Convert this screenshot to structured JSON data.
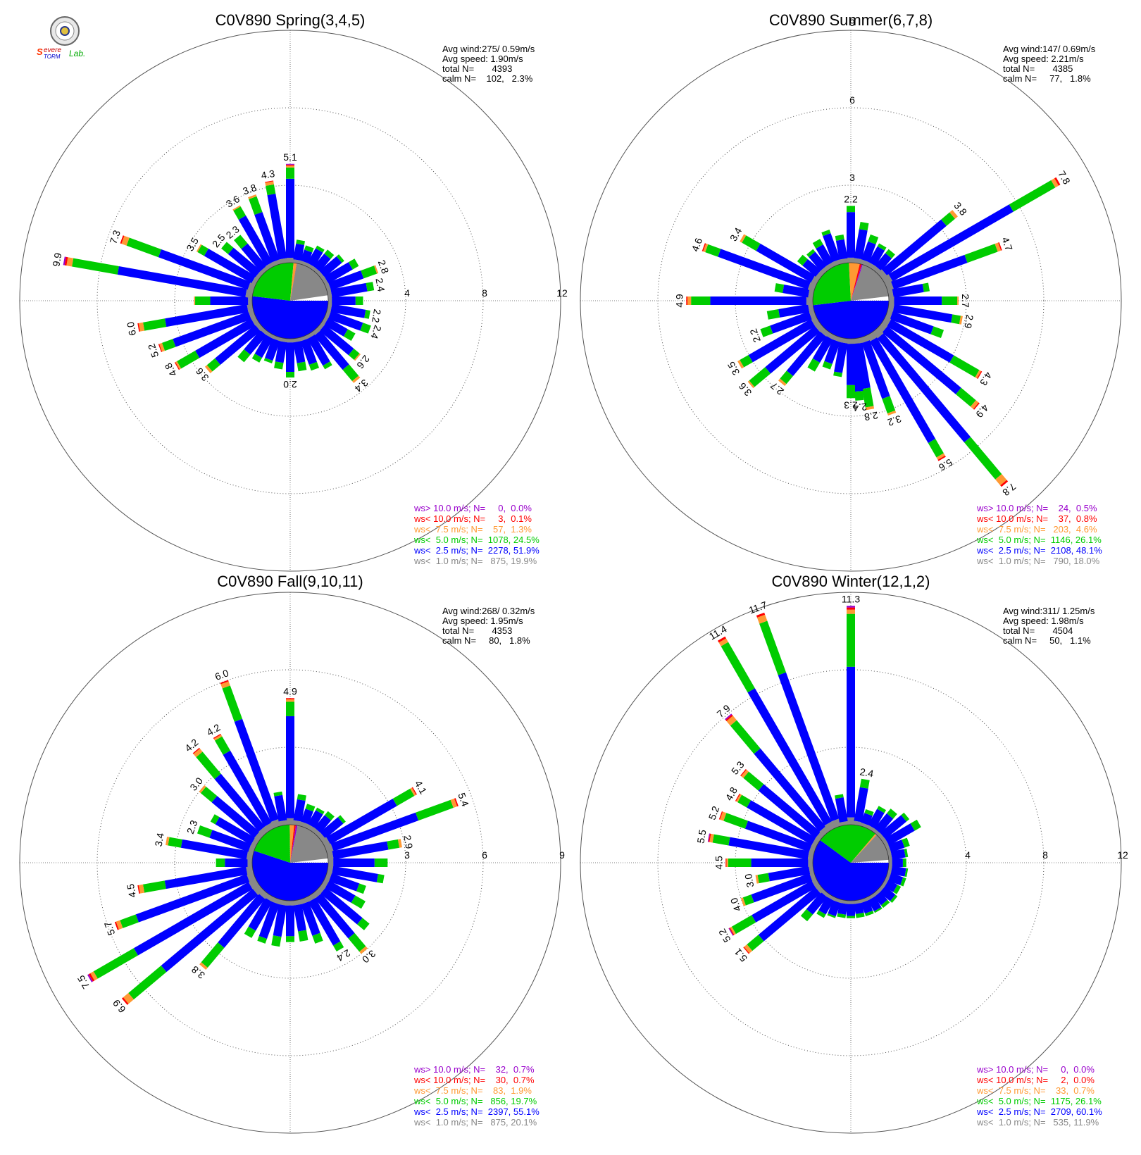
{
  "logo": {
    "text": "Severe Storm Lab."
  },
  "chart_data": [
    {
      "type": "rose",
      "title": "C0V890 Spring(3,4,5)",
      "ring_max": 12,
      "ring_labels": [
        "4",
        "8",
        "12"
      ],
      "ring_label_side": "east",
      "stats": [
        "Avg wind:275/ 0.59m/s",
        "Avg speed: 1.90m/s",
        "total N=       4393",
        "calm N=    102,   2.3%"
      ],
      "legend": [
        "ws> 10.0 m/s; N=     0,  0.0%",
        "ws< 10.0 m/s; N=     3,  0.1%",
        "ws<  7.5 m/s; N=    57,  1.3%",
        "ws<  5.0 m/s; N=  1078, 24.5%",
        "ws<  2.5 m/s; N=  2278, 51.9%",
        "ws<  1.0 m/s; N=   875, 19.9%"
      ],
      "pie": [
        51.9,
        24.5,
        1.3,
        0.1,
        0.0,
        19.9
      ],
      "spokes": [
        {
          "dir": 0,
          "total": 5.1,
          "label": "5.1"
        },
        {
          "dir": 10,
          "total": 1.2
        },
        {
          "dir": 20,
          "total": 1.0
        },
        {
          "dir": 30,
          "total": 1.2
        },
        {
          "dir": 40,
          "total": 1.3
        },
        {
          "dir": 50,
          "total": 1.5
        },
        {
          "dir": 60,
          "total": 2.0
        },
        {
          "dir": 70,
          "total": 2.8,
          "label": "2.8"
        },
        {
          "dir": 80,
          "total": 2.4,
          "label": "2.4"
        },
        {
          "dir": 90,
          "total": 1.8
        },
        {
          "dir": 100,
          "total": 2.2,
          "label": "2.2"
        },
        {
          "dir": 110,
          "total": 2.4,
          "label": "2.4"
        },
        {
          "dir": 120,
          "total": 1.8
        },
        {
          "dir": 130,
          "total": 2.6,
          "label": "2.6"
        },
        {
          "dir": 140,
          "total": 3.4,
          "label": "3.4"
        },
        {
          "dir": 150,
          "total": 2.0
        },
        {
          "dir": 160,
          "total": 1.8
        },
        {
          "dir": 170,
          "total": 1.7
        },
        {
          "dir": 180,
          "total": 2.0,
          "label": "2.0"
        },
        {
          "dir": 190,
          "total": 1.6
        },
        {
          "dir": 200,
          "total": 1.4
        },
        {
          "dir": 210,
          "total": 1.6
        },
        {
          "dir": 220,
          "total": 2.0
        },
        {
          "dir": 230,
          "total": 3.6,
          "label": "3.6"
        },
        {
          "dir": 240,
          "total": 4.8,
          "label": "4.8"
        },
        {
          "dir": 250,
          "total": 5.2,
          "label": "5.2"
        },
        {
          "dir": 260,
          "total": 6.0,
          "label": "6.0"
        },
        {
          "dir": 270,
          "total": 3.0
        },
        {
          "dir": 280,
          "total": 9.9,
          "label": "9.9"
        },
        {
          "dir": 290,
          "total": 7.3,
          "label": "7.3"
        },
        {
          "dir": 300,
          "total": 3.5,
          "label": "3.5"
        },
        {
          "dir": 310,
          "total": 2.5,
          "label": "2.5"
        },
        {
          "dir": 320,
          "total": 2.3,
          "label": "2.3"
        },
        {
          "dir": 330,
          "total": 3.6,
          "label": "3.6"
        },
        {
          "dir": 340,
          "total": 3.8,
          "label": "3.8"
        },
        {
          "dir": 350,
          "total": 4.3,
          "label": "4.3"
        }
      ]
    },
    {
      "type": "rose",
      "title": "C0V890 Summer(6,7,8)",
      "ring_max": 9,
      "ring_labels": [
        "3",
        "6",
        "9"
      ],
      "ring_label_side": "north",
      "stats": [
        "Avg wind:147/ 0.69m/s",
        "Avg speed: 2.21m/s",
        "total N=       4385",
        "calm N=     77,   1.8%"
      ],
      "legend": [
        "ws> 10.0 m/s; N=    24,  0.5%",
        "ws< 10.0 m/s; N=    37,  0.8%",
        "ws<  7.5 m/s; N=   203,  4.6%",
        "ws<  5.0 m/s; N=  1146, 26.1%",
        "ws<  2.5 m/s; N=  2108, 48.1%",
        "ws<  1.0 m/s; N=   790, 18.0%"
      ],
      "pie": [
        48.1,
        26.1,
        4.6,
        0.8,
        0.5,
        18.0
      ],
      "spokes": [
        {
          "dir": 0,
          "total": 2.2,
          "label": "2.2"
        },
        {
          "dir": 10,
          "total": 1.6
        },
        {
          "dir": 20,
          "total": 1.2
        },
        {
          "dir": 30,
          "total": 1.0
        },
        {
          "dir": 40,
          "total": 1.0
        },
        {
          "dir": 50,
          "total": 3.8,
          "label": "3.8"
        },
        {
          "dir": 60,
          "total": 7.8,
          "label": "7.8"
        },
        {
          "dir": 70,
          "total": 4.7,
          "label": "4.7"
        },
        {
          "dir": 80,
          "total": 1.6
        },
        {
          "dir": 90,
          "total": 2.7,
          "label": "2.7"
        },
        {
          "dir": 100,
          "total": 2.9,
          "label": "2.9"
        },
        {
          "dir": 110,
          "total": 2.3
        },
        {
          "dir": 120,
          "total": 4.3,
          "label": "4.3"
        },
        {
          "dir": 130,
          "total": 4.9,
          "label": "4.9"
        },
        {
          "dir": 140,
          "total": 7.8,
          "label": "7.8"
        },
        {
          "dir": 150,
          "total": 5.6,
          "label": "5.6"
        },
        {
          "dir": 160,
          "total": 3.2,
          "label": "3.2"
        },
        {
          "dir": 170,
          "total": 2.8,
          "label": "2.8"
        },
        {
          "dir": 175,
          "total": 2.4,
          "label": "2.4"
        },
        {
          "dir": 180,
          "total": 2.3,
          "label": "2.3"
        },
        {
          "dir": 190,
          "total": 1.5
        },
        {
          "dir": 200,
          "total": 1.3
        },
        {
          "dir": 210,
          "total": 1.6
        },
        {
          "dir": 220,
          "total": 2.7,
          "label": "2.7"
        },
        {
          "dir": 230,
          "total": 3.6,
          "label": "3.6"
        },
        {
          "dir": 240,
          "total": 3.5,
          "label": "3.5"
        },
        {
          "dir": 250,
          "total": 2.2,
          "label": "2.2"
        },
        {
          "dir": 260,
          "total": 1.8
        },
        {
          "dir": 270,
          "total": 4.9,
          "label": "4.9"
        },
        {
          "dir": 280,
          "total": 1.5
        },
        {
          "dir": 290,
          "total": 4.6,
          "label": "4.6"
        },
        {
          "dir": 300,
          "total": 3.4,
          "label": "3.4"
        },
        {
          "dir": 310,
          "total": 1.1
        },
        {
          "dir": 320,
          "total": 1.0
        },
        {
          "dir": 330,
          "total": 1.2
        },
        {
          "dir": 340,
          "total": 1.4
        },
        {
          "dir": 350,
          "total": 1.1
        }
      ]
    },
    {
      "type": "rose",
      "title": "C0V890 Fall(9,10,11)",
      "ring_max": 9,
      "ring_labels": [
        "3",
        "6",
        "9"
      ],
      "ring_label_side": "east",
      "stats": [
        "Avg wind:268/ 0.32m/s",
        "Avg speed: 1.95m/s",
        "total N=       4353",
        "calm N=     80,   1.8%"
      ],
      "legend": [
        "ws> 10.0 m/s; N=    32,  0.7%",
        "ws< 10.0 m/s; N=    30,  0.7%",
        "ws<  7.5 m/s; N=    83,  1.9%",
        "ws<  5.0 m/s; N=   856, 19.7%",
        "ws<  2.5 m/s; N=  2397, 55.1%",
        "ws<  1.0 m/s; N=   875, 20.1%"
      ],
      "pie": [
        55.1,
        19.7,
        1.9,
        0.7,
        0.7,
        20.1
      ],
      "spokes": [
        {
          "dir": 0,
          "total": 4.9,
          "label": "4.9"
        },
        {
          "dir": 10,
          "total": 1.2
        },
        {
          "dir": 20,
          "total": 0.9
        },
        {
          "dir": 30,
          "total": 0.9
        },
        {
          "dir": 40,
          "total": 1.0
        },
        {
          "dir": 50,
          "total": 1.2
        },
        {
          "dir": 60,
          "total": 4.1,
          "label": "4.1"
        },
        {
          "dir": 70,
          "total": 5.4,
          "label": "5.4"
        },
        {
          "dir": 80,
          "total": 2.9,
          "label": "2.9"
        },
        {
          "dir": 90,
          "total": 2.3
        },
        {
          "dir": 100,
          "total": 2.2
        },
        {
          "dir": 110,
          "total": 1.6
        },
        {
          "dir": 120,
          "total": 1.8
        },
        {
          "dir": 130,
          "total": 2.4
        },
        {
          "dir": 140,
          "total": 3.0,
          "label": "3.0"
        },
        {
          "dir": 150,
          "total": 2.4,
          "label": "2.4"
        },
        {
          "dir": 160,
          "total": 1.8
        },
        {
          "dir": 170,
          "total": 1.6
        },
        {
          "dir": 180,
          "total": 1.6
        },
        {
          "dir": 190,
          "total": 1.8
        },
        {
          "dir": 200,
          "total": 1.8
        },
        {
          "dir": 210,
          "total": 1.8
        },
        {
          "dir": 220,
          "total": 3.8,
          "label": "3.8"
        },
        {
          "dir": 230,
          "total": 6.9,
          "label": "6.9"
        },
        {
          "dir": 240,
          "total": 7.5,
          "label": "7.5"
        },
        {
          "dir": 250,
          "total": 5.7,
          "label": "5.7"
        },
        {
          "dir": 260,
          "total": 4.5,
          "label": "4.5"
        },
        {
          "dir": 270,
          "total": 1.4
        },
        {
          "dir": 280,
          "total": 3.4,
          "label": "3.4"
        },
        {
          "dir": 290,
          "total": 2.3,
          "label": "2.3"
        },
        {
          "dir": 300,
          "total": 2.0
        },
        {
          "dir": 310,
          "total": 3.0,
          "label": "3.0"
        },
        {
          "dir": 320,
          "total": 4.2,
          "label": "4.2"
        },
        {
          "dir": 330,
          "total": 4.2,
          "label": "4.2"
        },
        {
          "dir": 340,
          "total": 6.0,
          "label": "6.0"
        },
        {
          "dir": 350,
          "total": 1.3
        }
      ]
    },
    {
      "type": "rose",
      "title": "C0V890 Winter(12,1,2)",
      "ring_max": 12,
      "ring_labels": [
        "4",
        "8",
        "12"
      ],
      "ring_label_side": "east",
      "stats": [
        "Avg wind:311/ 1.25m/s",
        "Avg speed: 1.98m/s",
        "total N=       4504",
        "calm N=     50,   1.1%"
      ],
      "legend": [
        "ws> 10.0 m/s; N=     0,  0.0%",
        "ws< 10.0 m/s; N=     2,  0.0%",
        "ws<  7.5 m/s; N=    33,  0.7%",
        "ws<  5.0 m/s; N=  1175, 26.1%",
        "ws<  2.5 m/s; N=  2709, 60.1%",
        "ws<  1.0 m/s; N=   535, 11.9%"
      ],
      "pie": [
        60.1,
        26.1,
        0.7,
        0.0,
        0.0,
        11.9
      ],
      "spokes": [
        {
          "dir": 0,
          "total": 11.3,
          "label": "11.3"
        },
        {
          "dir": 10,
          "total": 2.4,
          "label": "2.4"
        },
        {
          "dir": 20,
          "total": 0.9
        },
        {
          "dir": 30,
          "total": 1.3
        },
        {
          "dir": 40,
          "total": 1.5
        },
        {
          "dir": 50,
          "total": 1.8
        },
        {
          "dir": 60,
          "total": 2.1
        },
        {
          "dir": 70,
          "total": 1.2
        },
        {
          "dir": 80,
          "total": 1.0
        },
        {
          "dir": 90,
          "total": 0.9
        },
        {
          "dir": 100,
          "total": 1.0
        },
        {
          "dir": 110,
          "total": 1.0
        },
        {
          "dir": 120,
          "total": 0.9
        },
        {
          "dir": 130,
          "total": 1.0
        },
        {
          "dir": 140,
          "total": 0.9
        },
        {
          "dir": 150,
          "total": 0.9
        },
        {
          "dir": 160,
          "total": 0.9
        },
        {
          "dir": 170,
          "total": 0.9
        },
        {
          "dir": 180,
          "total": 0.9
        },
        {
          "dir": 190,
          "total": 0.9
        },
        {
          "dir": 200,
          "total": 1.0
        },
        {
          "dir": 210,
          "total": 1.2
        },
        {
          "dir": 220,
          "total": 1.8
        },
        {
          "dir": 230,
          "total": 5.1,
          "label": "5.1"
        },
        {
          "dir": 240,
          "total": 5.2,
          "label": "5.2"
        },
        {
          "dir": 250,
          "total": 4.0,
          "label": "4.0"
        },
        {
          "dir": 260,
          "total": 3.0,
          "label": "3.0"
        },
        {
          "dir": 270,
          "total": 4.5,
          "label": "4.5"
        },
        {
          "dir": 280,
          "total": 5.5,
          "label": "5.5"
        },
        {
          "dir": 290,
          "total": 5.2,
          "label": "5.2"
        },
        {
          "dir": 300,
          "total": 4.8,
          "label": "4.8"
        },
        {
          "dir": 310,
          "total": 5.3,
          "label": "5.3"
        },
        {
          "dir": 320,
          "total": 7.9,
          "label": "7.9"
        },
        {
          "dir": 330,
          "total": 11.4,
          "label": "11.4"
        },
        {
          "dir": 340,
          "total": 11.7,
          "label": "11.7"
        },
        {
          "dir": 350,
          "total": 1.6
        }
      ]
    }
  ],
  "colors": {
    "ws_lt_1": "#888888",
    "ws_lt_2_5": "#0000ff",
    "ws_lt_5": "#00cc00",
    "ws_lt_7_5": "#ff9933",
    "ws_lt_10": "#ff0000",
    "ws_gt_10": "#9900cc",
    "grid": "#555555"
  }
}
